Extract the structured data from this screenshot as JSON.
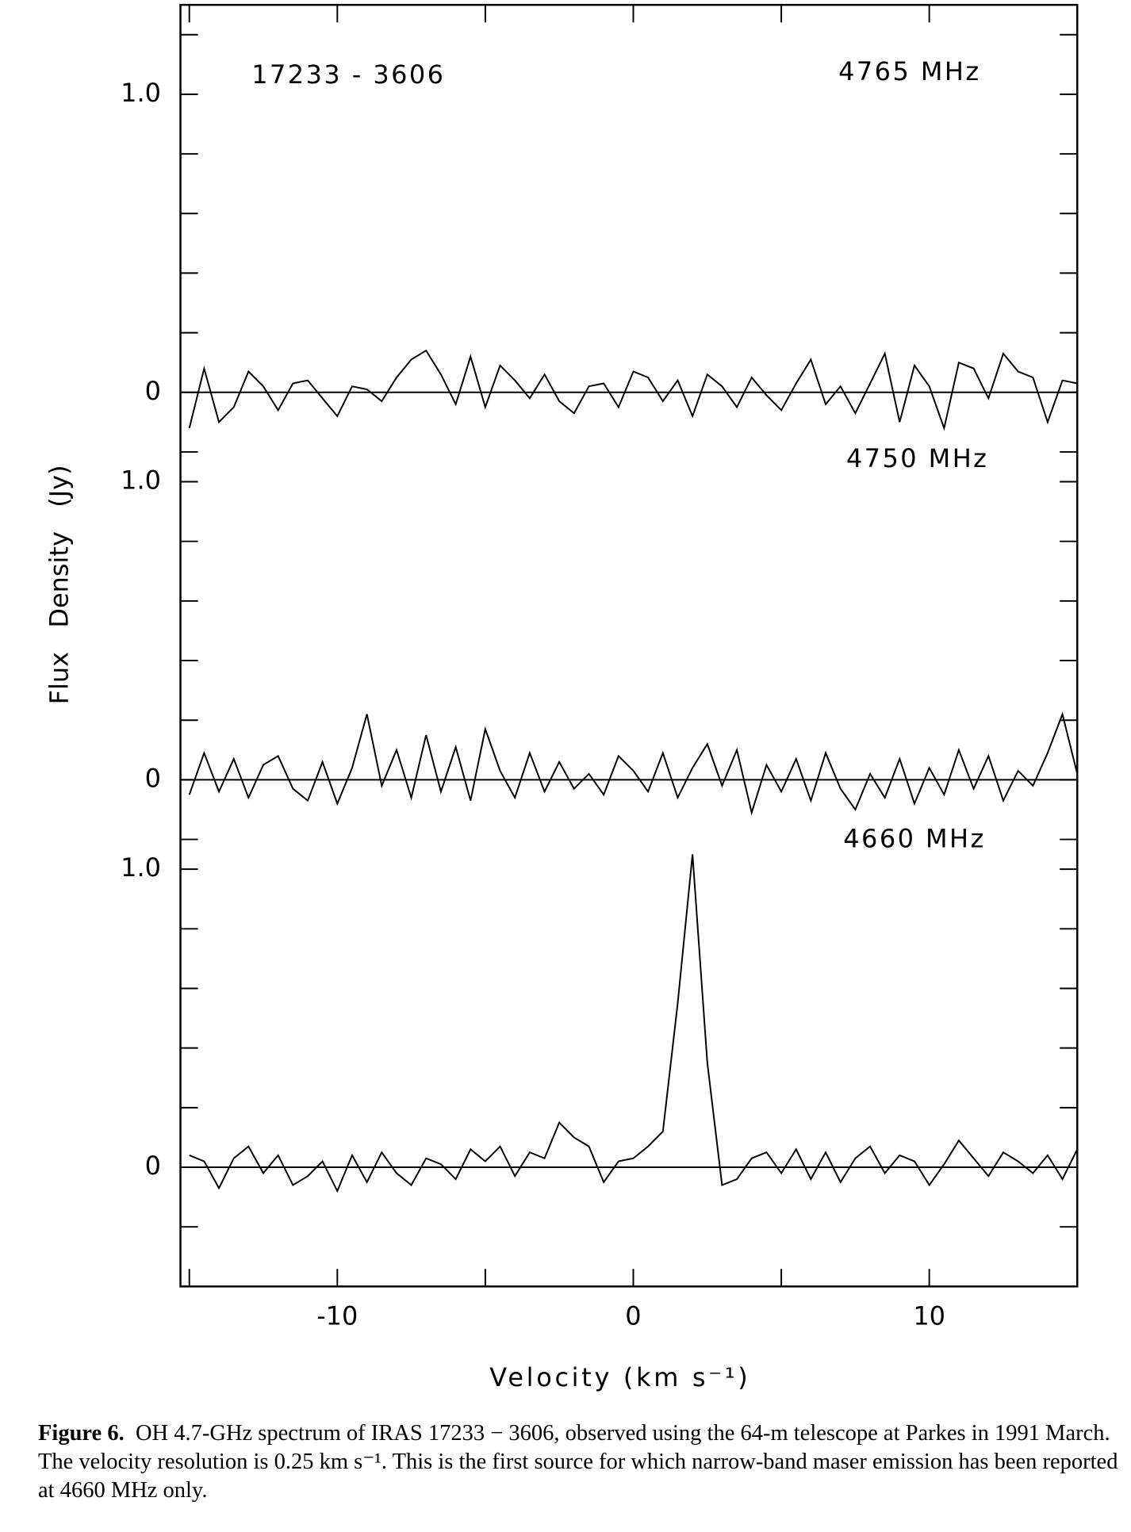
{
  "chart_data": {
    "type": "line",
    "xlabel": "Velocity (km s⁻¹)",
    "ylabel": "Flux   Density   (Jy)",
    "xlim": [
      -15.3,
      15
    ],
    "xticks": [
      -10,
      0,
      10
    ],
    "xminorticks": [
      -15,
      -5,
      5,
      15
    ],
    "x": [
      -15,
      -14.5,
      -14,
      -13.5,
      -13,
      -12.5,
      -12,
      -11.5,
      -11,
      -10.5,
      -10,
      -9.5,
      -9,
      -8.5,
      -8,
      -7.5,
      -7,
      -6.5,
      -6,
      -5.5,
      -5,
      -4.5,
      -4,
      -3.5,
      -3,
      -2.5,
      -2,
      -1.5,
      -1,
      -0.5,
      0,
      0.5,
      1,
      1.5,
      2,
      2.5,
      3,
      3.5,
      4,
      4.5,
      5,
      5.5,
      6,
      6.5,
      7,
      7.5,
      8,
      8.5,
      9,
      9.5,
      10,
      10.5,
      11,
      11.5,
      12,
      12.5,
      13,
      13.5,
      14,
      14.5,
      15
    ],
    "annotations": [
      "17233 - 3606"
    ],
    "series": [
      {
        "name": "4765 MHz",
        "color": "#000000",
        "ylim": [
          -0.3,
          1.3
        ],
        "yticks": [
          0,
          {
            "value": 1,
            "label": "1.0"
          }
        ],
        "yminorticks": [
          -0.2,
          0.2,
          0.4,
          0.6,
          0.8,
          1.2
        ],
        "values": [
          -0.12,
          0.08,
          -0.1,
          -0.05,
          0.07,
          0.02,
          -0.06,
          0.03,
          0.04,
          -0.02,
          -0.08,
          0.02,
          0.01,
          -0.03,
          0.05,
          0.11,
          0.14,
          0.06,
          -0.04,
          0.12,
          -0.05,
          0.09,
          0.04,
          -0.02,
          0.06,
          -0.03,
          -0.07,
          0.02,
          0.03,
          -0.05,
          0.07,
          0.05,
          -0.03,
          0.04,
          -0.08,
          0.06,
          0.02,
          -0.05,
          0.05,
          -0.01,
          -0.06,
          0.03,
          0.11,
          -0.04,
          0.02,
          -0.07,
          0.03,
          0.13,
          -0.1,
          0.09,
          0.02,
          -0.12,
          0.1,
          0.08,
          -0.02,
          0.13,
          0.07,
          0.05,
          -0.1,
          0.04,
          0.03
        ]
      },
      {
        "name": "4750 MHz",
        "color": "#000000",
        "ylim": [
          -0.3,
          1.0
        ],
        "yticks": [
          0,
          {
            "value": 1,
            "label": "1.0"
          }
        ],
        "yminorticks": [
          -0.2,
          0.2,
          0.4,
          0.6,
          0.8
        ],
        "values": [
          -0.05,
          0.09,
          -0.04,
          0.07,
          -0.06,
          0.05,
          0.08,
          -0.03,
          -0.07,
          0.06,
          -0.08,
          0.04,
          0.22,
          -0.02,
          0.1,
          -0.06,
          0.15,
          -0.04,
          0.11,
          -0.07,
          0.17,
          0.03,
          -0.06,
          0.09,
          -0.04,
          0.06,
          -0.03,
          0.02,
          -0.05,
          0.08,
          0.03,
          -0.04,
          0.09,
          -0.06,
          0.04,
          0.12,
          -0.02,
          0.1,
          -0.11,
          0.05,
          -0.04,
          0.07,
          -0.07,
          0.09,
          -0.03,
          -0.1,
          0.02,
          -0.06,
          0.07,
          -0.08,
          0.04,
          -0.05,
          0.1,
          -0.03,
          0.08,
          -0.07,
          0.03,
          -0.02,
          0.09,
          0.22,
          0.02
        ]
      },
      {
        "name": "4660 MHz",
        "color": "#000000",
        "ylim": [
          -0.4,
          1.0
        ],
        "yticks": [
          0,
          {
            "value": 1,
            "label": "1.0"
          }
        ],
        "yminorticks": [
          -0.2,
          0.2,
          0.4,
          0.6,
          0.8
        ],
        "values": [
          0.04,
          0.02,
          -0.07,
          0.03,
          0.07,
          -0.02,
          0.04,
          -0.06,
          -0.03,
          0.02,
          -0.08,
          0.04,
          -0.05,
          0.05,
          -0.02,
          -0.06,
          0.03,
          0.01,
          -0.04,
          0.06,
          0.02,
          0.07,
          -0.03,
          0.05,
          0.03,
          0.15,
          0.1,
          0.07,
          -0.05,
          0.02,
          0.03,
          0.07,
          0.12,
          0.55,
          1.05,
          0.35,
          -0.06,
          -0.04,
          0.03,
          0.05,
          -0.02,
          0.06,
          -0.04,
          0.05,
          -0.05,
          0.03,
          0.07,
          -0.02,
          0.04,
          0.02,
          -0.06,
          0.01,
          0.09,
          0.03,
          -0.03,
          0.05,
          0.02,
          -0.02,
          0.04,
          -0.04,
          0.06
        ]
      }
    ]
  },
  "caption": {
    "label": "Figure 6.",
    "text": "OH 4.7-GHz spectrum of IRAS 17233 − 3606, observed using the 64-m telescope at Parkes in 1991 March. The velocity resolution is 0.25 km s⁻¹. This is the first source for which narrow-band maser emission has been reported at 4660 MHz only."
  }
}
